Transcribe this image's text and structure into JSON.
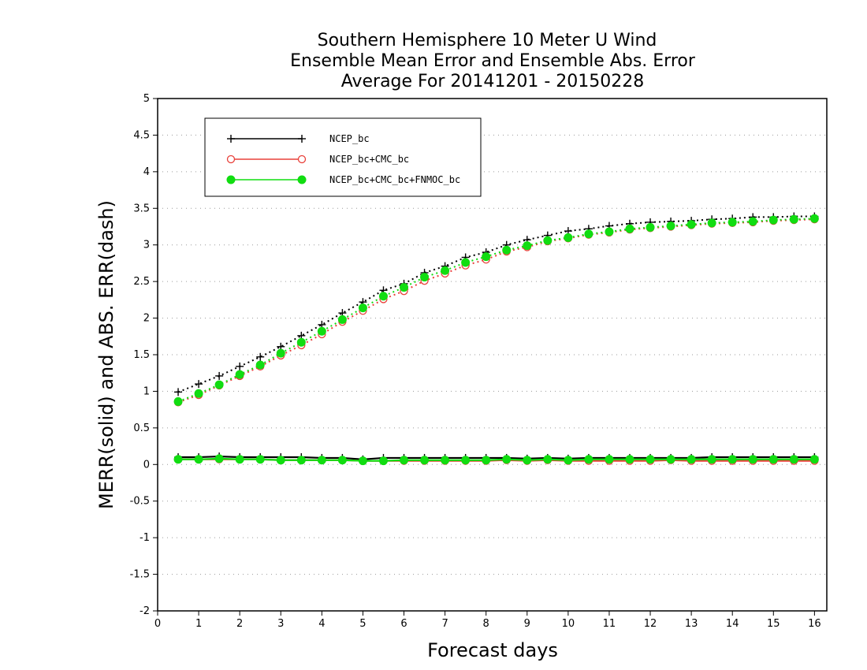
{
  "chart_data": {
    "type": "line",
    "title_lines": [
      "Southern Hemisphere 10 Meter U Wind",
      "Ensemble Mean Error and Ensemble Abs. Error",
      "Average For 20141201 - 20150228"
    ],
    "xlabel": "Forecast days",
    "ylabel": "MERR(solid) and ABS. ERR(dash)",
    "xlim": [
      0,
      16.3
    ],
    "ylim": [
      -2,
      5
    ],
    "xticks": [
      0,
      1,
      2,
      3,
      4,
      5,
      6,
      7,
      8,
      9,
      10,
      11,
      12,
      13,
      14,
      15,
      16
    ],
    "yticks": [
      -2,
      -1.5,
      -1,
      -0.5,
      0,
      0.5,
      1,
      1.5,
      2,
      2.5,
      3,
      3.5,
      4,
      4.5,
      5
    ],
    "ytick_labels": [
      "-2",
      "-1.5",
      "-1",
      "-0.5",
      "0",
      "0.5",
      "1",
      "1.5",
      "2",
      "2.5",
      "3",
      "3.5",
      "4",
      "4.5",
      "5"
    ],
    "grid": "horizontal dotted",
    "legend_position": "top-left",
    "x": [
      0.5,
      1,
      1.5,
      2,
      2.5,
      3,
      3.5,
      4,
      4.5,
      5,
      5.5,
      6,
      6.5,
      7,
      7.5,
      8,
      8.5,
      9,
      9.5,
      10,
      10.5,
      11,
      11.5,
      12,
      12.5,
      13,
      13.5,
      14,
      14.5,
      15,
      15.5,
      16
    ],
    "series": [
      {
        "name": "NCEP_bc",
        "color": "#000000",
        "marker": "plus",
        "merr": [
          0.1,
          0.1,
          0.11,
          0.1,
          0.1,
          0.1,
          0.1,
          0.09,
          0.09,
          0.07,
          0.09,
          0.09,
          0.09,
          0.09,
          0.09,
          0.09,
          0.09,
          0.08,
          0.09,
          0.08,
          0.09,
          0.09,
          0.09,
          0.09,
          0.09,
          0.09,
          0.1,
          0.1,
          0.1,
          0.1,
          0.1,
          0.1
        ],
        "abs_err": [
          0.99,
          1.1,
          1.21,
          1.34,
          1.47,
          1.61,
          1.76,
          1.91,
          2.07,
          2.22,
          2.38,
          2.47,
          2.62,
          2.71,
          2.83,
          2.9,
          3.0,
          3.07,
          3.13,
          3.19,
          3.22,
          3.26,
          3.29,
          3.31,
          3.32,
          3.33,
          3.35,
          3.36,
          3.38,
          3.38,
          3.39,
          3.39
        ]
      },
      {
        "name": "NCEP_bc+CMC_bc",
        "color": "#e8403a",
        "marker": "open-circle",
        "merr": [
          0.07,
          0.07,
          0.07,
          0.07,
          0.07,
          0.06,
          0.06,
          0.06,
          0.06,
          0.05,
          0.05,
          0.05,
          0.05,
          0.05,
          0.05,
          0.05,
          0.06,
          0.05,
          0.06,
          0.05,
          0.05,
          0.05,
          0.05,
          0.05,
          0.06,
          0.05,
          0.05,
          0.05,
          0.05,
          0.05,
          0.05,
          0.05
        ],
        "abs_err": [
          0.85,
          0.95,
          1.08,
          1.21,
          1.34,
          1.49,
          1.63,
          1.78,
          1.95,
          2.1,
          2.26,
          2.37,
          2.51,
          2.61,
          2.72,
          2.8,
          2.91,
          2.97,
          3.05,
          3.09,
          3.14,
          3.17,
          3.21,
          3.23,
          3.25,
          3.27,
          3.29,
          3.3,
          3.31,
          3.33,
          3.34,
          3.35
        ]
      },
      {
        "name": "NCEP_bc+CMC_bc+FNMOC_bc",
        "color": "#11dd11",
        "marker": "filled-circle",
        "merr": [
          0.07,
          0.07,
          0.08,
          0.07,
          0.07,
          0.06,
          0.06,
          0.06,
          0.06,
          0.05,
          0.05,
          0.06,
          0.06,
          0.06,
          0.06,
          0.06,
          0.07,
          0.06,
          0.07,
          0.06,
          0.07,
          0.07,
          0.07,
          0.07,
          0.07,
          0.07,
          0.07,
          0.07,
          0.07,
          0.07,
          0.07,
          0.07
        ],
        "abs_err": [
          0.86,
          0.97,
          1.09,
          1.23,
          1.36,
          1.52,
          1.67,
          1.82,
          1.98,
          2.14,
          2.3,
          2.42,
          2.56,
          2.65,
          2.76,
          2.84,
          2.93,
          2.99,
          3.06,
          3.1,
          3.15,
          3.18,
          3.22,
          3.24,
          3.26,
          3.28,
          3.3,
          3.31,
          3.32,
          3.34,
          3.35,
          3.36
        ]
      }
    ]
  }
}
